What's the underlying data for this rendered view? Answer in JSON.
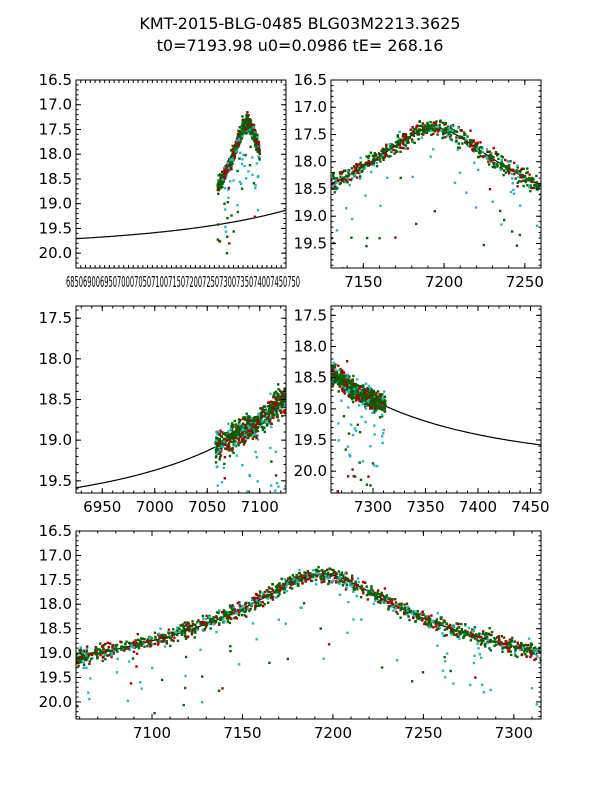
{
  "figure": {
    "title_line1": "KMT-2015-BLG-0485 BLG03M2213.3625",
    "title_line2": "t0=7193.98 u0=0.0986 tE= 268.16"
  },
  "colors": {
    "series_red": "#aa0000",
    "series_green": "#006600",
    "series_cyan": "#1fb8c4",
    "model_line": "#000000"
  },
  "chart_data": [
    {
      "type": "scatter",
      "id": "panel-1",
      "xlim": [
        6850,
        7050
      ],
      "ylim": [
        20.3,
        16.5
      ],
      "xticks_label": "6850690069507000705071007150720072507300735074007450750",
      "yticks": [
        16.5,
        17.0,
        17.5,
        18.0,
        18.5,
        19.0,
        19.5,
        20.0
      ],
      "ytick_labels": [
        "16.5",
        "17.0",
        "17.5",
        "18.0",
        "18.5",
        "19.0",
        "19.5",
        "20.0"
      ],
      "model": "pspl",
      "t0": 7193.98,
      "u0": 0.0986,
      "tE": 268.16
    },
    {
      "type": "scatter",
      "id": "panel-2",
      "xlim": [
        7130,
        7260
      ],
      "ylim": [
        19.95,
        16.5
      ],
      "xticks": [
        7150,
        7200,
        7250
      ],
      "xtick_labels": [
        "7150",
        "7200",
        "7250"
      ],
      "yticks": [
        16.5,
        17.0,
        17.5,
        18.0,
        18.5,
        19.0,
        19.5
      ],
      "ytick_labels": [
        "16.5",
        "17.0",
        "17.5",
        "18.0",
        "18.5",
        "19.0",
        "19.5"
      ],
      "model": "pspl",
      "t0": 7193.98,
      "u0": 0.0986,
      "tE": 268.16
    },
    {
      "type": "scatter",
      "id": "panel-3",
      "xlim": [
        6925,
        7125
      ],
      "ylim": [
        19.65,
        17.35
      ],
      "xticks": [
        6950,
        7000,
        7050,
        7100
      ],
      "xtick_labels": [
        "6950",
        "7000",
        "7050",
        "7100"
      ],
      "yticks": [
        17.5,
        18.0,
        18.5,
        19.0,
        19.5
      ],
      "ytick_labels": [
        "17.5",
        "18.0",
        "18.5",
        "19.0",
        "19.5"
      ],
      "model": "pspl",
      "t0": 7193.98,
      "u0": 0.0986,
      "tE": 268.16
    },
    {
      "type": "scatter",
      "id": "panel-4",
      "xlim": [
        7260,
        7460
      ],
      "ylim": [
        20.35,
        17.35
      ],
      "xticks": [
        7300,
        7350,
        7400,
        7450
      ],
      "xtick_labels": [
        "7300",
        "7350",
        "7400",
        "7450"
      ],
      "yticks": [
        17.5,
        18.0,
        18.5,
        19.0,
        19.5,
        20.0
      ],
      "ytick_labels": [
        "17.5",
        "18.0",
        "18.5",
        "19.0",
        "19.5",
        "20.0"
      ],
      "model": "pspl",
      "t0": 7193.98,
      "u0": 0.0986,
      "tE": 268.16
    },
    {
      "type": "scatter",
      "id": "panel-5",
      "xlim": [
        7058,
        7315
      ],
      "ylim": [
        20.35,
        16.5
      ],
      "xticks": [
        7100,
        7150,
        7200,
        7250,
        7300
      ],
      "xtick_labels": [
        "7100",
        "7150",
        "7200",
        "7250",
        "7300"
      ],
      "yticks": [
        16.5,
        17.0,
        17.5,
        18.0,
        18.5,
        19.0,
        19.5,
        20.0
      ],
      "ytick_labels": [
        "16.5",
        "17.0",
        "17.5",
        "18.0",
        "18.5",
        "19.0",
        "19.5",
        "20.0"
      ],
      "model": "pspl",
      "t0": 7193.98,
      "u0": 0.0986,
      "tE": 268.16
    }
  ]
}
